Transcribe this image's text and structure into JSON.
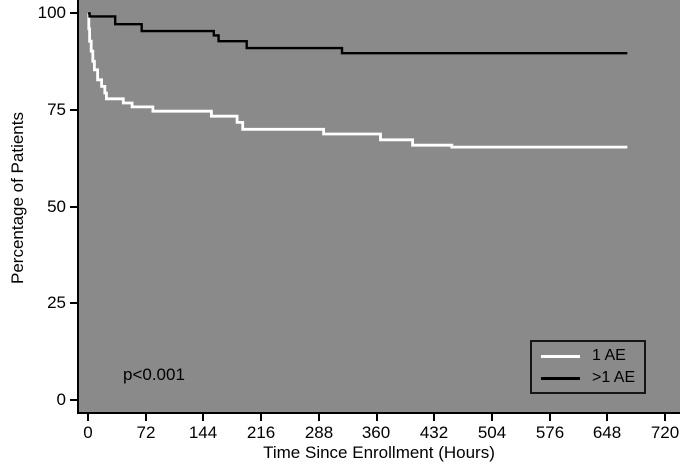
{
  "figure": {
    "p_value": "p<0.001",
    "colors": {
      "plot_background": "#8a8a8a",
      "axis": "#000000",
      "series_1ae": "#ffffff",
      "series_gt1ae": "#000000"
    }
  },
  "chart_data": {
    "type": "line",
    "subtype": "kaplan-meier-step",
    "title": "",
    "xlabel": "Time Since Enrollment (Hours)",
    "ylabel": "Percentage of Patients",
    "xlim": [
      0,
      720
    ],
    "ylim": [
      0,
      100
    ],
    "grid": false,
    "legend_position": "bottom-right",
    "annotation": "p<0.001",
    "x_ticks": [
      0,
      72,
      144,
      216,
      288,
      360,
      432,
      504,
      576,
      648,
      720
    ],
    "y_ticks": [
      100,
      75,
      50,
      25,
      0
    ],
    "x_tick_labels": [
      "0",
      "72",
      "144",
      "216",
      "288",
      "360",
      "432",
      "504",
      "576",
      "648",
      "720"
    ],
    "y_tick_labels": [
      "100",
      "75",
      "50",
      "25",
      "0"
    ],
    "series": [
      {
        "name": "1 AE",
        "color": "#ffffff",
        "points": [
          [
            0,
            100
          ],
          [
            1,
            96
          ],
          [
            2,
            92.8
          ],
          [
            4,
            90.2
          ],
          [
            6,
            87.6
          ],
          [
            8,
            85.4
          ],
          [
            12,
            82.8
          ],
          [
            17,
            81.1
          ],
          [
            21,
            79.4
          ],
          [
            23,
            77.9
          ],
          [
            44,
            76.8
          ],
          [
            55,
            75.8
          ],
          [
            81,
            74.7
          ],
          [
            154,
            73.4
          ],
          [
            186,
            71.8
          ],
          [
            193,
            70
          ],
          [
            294,
            68.8
          ],
          [
            365,
            67.3
          ],
          [
            405,
            65.9
          ],
          [
            454,
            65.4
          ],
          [
            673,
            65.4
          ]
        ]
      },
      {
        "name": ">1 AE",
        "color": "#000000",
        "points": [
          [
            0,
            100
          ],
          [
            2,
            99.2
          ],
          [
            34,
            97.2
          ],
          [
            67,
            95.4
          ],
          [
            157,
            94.3
          ],
          [
            163,
            92.8
          ],
          [
            198,
            91
          ],
          [
            317,
            89.7
          ],
          [
            673,
            89.7
          ]
        ]
      }
    ]
  },
  "legend": {
    "items": [
      {
        "label": "1 AE",
        "color": "#ffffff"
      },
      {
        "label": ">1 AE",
        "color": "#000000"
      }
    ]
  }
}
